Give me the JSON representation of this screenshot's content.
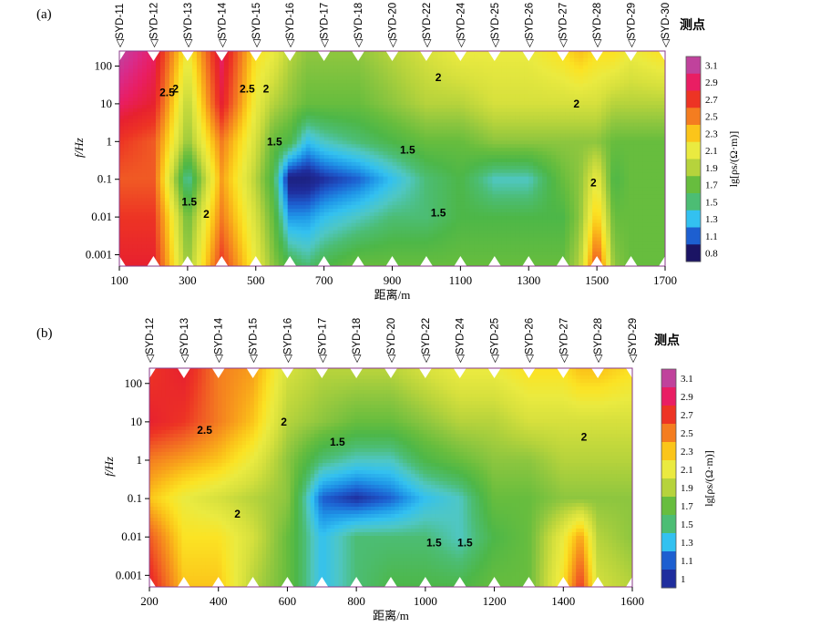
{
  "chart_data": [
    {
      "panel_label": "(a)",
      "type": "heatmap",
      "subtype": "resistivity-pseudosection",
      "xlabel": "距离/m",
      "ylabel": "f/Hz",
      "y_scale": "log",
      "xlim": [
        100,
        1700
      ],
      "ylim": [
        0.0005,
        250
      ],
      "x_ticks": [
        100,
        300,
        500,
        700,
        900,
        1100,
        1300,
        1500,
        1700
      ],
      "y_ticks": [
        100,
        10,
        1,
        0.1,
        0.01,
        0.001
      ],
      "y_tick_labels": [
        "100",
        "10",
        "1",
        "0.1",
        "0.01",
        "0.001"
      ],
      "stations_title": "测点",
      "stations": [
        {
          "name": "SYD-11",
          "x": 100
        },
        {
          "name": "SYD-12",
          "x": 200
        },
        {
          "name": "SYD-13",
          "x": 300
        },
        {
          "name": "SYD-14",
          "x": 400
        },
        {
          "name": "SYD-15",
          "x": 500
        },
        {
          "name": "SYD-16",
          "x": 600
        },
        {
          "name": "SYD-17",
          "x": 700
        },
        {
          "name": "SYD-18",
          "x": 800
        },
        {
          "name": "SYD-20",
          "x": 900
        },
        {
          "name": "SYD-22",
          "x": 1000
        },
        {
          "name": "SYD-24",
          "x": 1100
        },
        {
          "name": "SYD-25",
          "x": 1200
        },
        {
          "name": "SYD-26",
          "x": 1300
        },
        {
          "name": "SYD-27",
          "x": 1400
        },
        {
          "name": "SYD-28",
          "x": 1500
        },
        {
          "name": "SYD-29",
          "x": 1600
        },
        {
          "name": "SYD-30",
          "x": 1700
        }
      ],
      "colorbar_label": "lg[ρs/(Ω·m)]",
      "colorbar_ticks": [
        "3.1",
        "2.9",
        "2.7",
        "2.5",
        "2.3",
        "2.1",
        "1.9",
        "1.7",
        "1.5",
        "1.3",
        "1.1",
        "0.8"
      ],
      "contour_labels": [
        {
          "text": "2.5",
          "x": 240,
          "y": 20
        },
        {
          "text": "2",
          "x": 265,
          "y": 25
        },
        {
          "text": "2.5",
          "x": 475,
          "y": 25
        },
        {
          "text": "2",
          "x": 530,
          "y": 25
        },
        {
          "text": "1.5",
          "x": 555,
          "y": 1
        },
        {
          "text": "1.5",
          "x": 305,
          "y": 0.025
        },
        {
          "text": "2",
          "x": 355,
          "y": 0.012
        },
        {
          "text": "2",
          "x": 1035,
          "y": 50
        },
        {
          "text": "2",
          "x": 1440,
          "y": 10
        },
        {
          "text": "1.5",
          "x": 945,
          "y": 0.6
        },
        {
          "text": "1.5",
          "x": 1035,
          "y": 0.013
        },
        {
          "text": "2",
          "x": 1490,
          "y": 0.08
        }
      ],
      "grid_x": [
        100,
        200,
        300,
        400,
        500,
        550,
        600,
        650,
        700,
        800,
        900,
        1000,
        1100,
        1200,
        1300,
        1400,
        1450,
        1500,
        1550,
        1600,
        1700
      ],
      "grid_logf": [
        2.3,
        1,
        0,
        -1,
        -2,
        -3.3
      ],
      "values": [
        [
          3.1,
          2.9,
          2.1,
          2.9,
          2.2,
          2.1,
          1.9,
          1.8,
          1.8,
          1.8,
          1.9,
          2.0,
          2.1,
          2.1,
          2.1,
          2.2,
          2.3,
          2.2,
          2.2,
          2.1,
          2.2
        ],
        [
          2.9,
          2.8,
          1.9,
          2.8,
          2.1,
          1.9,
          1.8,
          1.7,
          1.7,
          1.7,
          1.8,
          1.9,
          1.9,
          2.0,
          2.0,
          2.0,
          2.0,
          2.0,
          1.9,
          1.9,
          1.9
        ],
        [
          2.7,
          2.6,
          1.8,
          2.5,
          2.0,
          1.7,
          1.6,
          1.3,
          1.4,
          1.5,
          1.6,
          1.7,
          1.7,
          1.8,
          1.8,
          1.8,
          1.8,
          1.8,
          1.7,
          1.7,
          1.7
        ],
        [
          2.6,
          2.6,
          1.4,
          2.4,
          1.9,
          1.6,
          0.9,
          0.9,
          1.0,
          1.1,
          1.3,
          1.5,
          1.6,
          1.4,
          1.4,
          1.7,
          1.8,
          2.1,
          1.6,
          1.7,
          1.7
        ],
        [
          2.7,
          2.7,
          1.7,
          2.5,
          2.0,
          1.7,
          1.2,
          1.2,
          1.3,
          1.4,
          1.5,
          1.5,
          1.6,
          1.6,
          1.6,
          1.6,
          1.8,
          2.3,
          1.7,
          1.7,
          1.7
        ],
        [
          2.8,
          2.8,
          1.8,
          2.7,
          2.1,
          1.8,
          1.6,
          1.5,
          1.6,
          1.7,
          1.7,
          1.7,
          1.7,
          1.7,
          1.7,
          1.7,
          1.9,
          2.7,
          1.8,
          1.7,
          1.7
        ]
      ]
    },
    {
      "panel_label": "(b)",
      "type": "heatmap",
      "subtype": "resistivity-pseudosection",
      "xlabel": "距离/m",
      "ylabel": "f/Hz",
      "y_scale": "log",
      "xlim": [
        200,
        1600
      ],
      "ylim": [
        0.0005,
        250
      ],
      "x_ticks": [
        200,
        400,
        600,
        800,
        1000,
        1200,
        1400,
        1600
      ],
      "y_ticks": [
        100,
        10,
        1,
        0.1,
        0.01,
        0.001
      ],
      "y_tick_labels": [
        "100",
        "10",
        "1",
        "0.1",
        "0.01",
        "0.001"
      ],
      "stations_title": "测点",
      "stations": [
        {
          "name": "SYD-12",
          "x": 200
        },
        {
          "name": "SYD-13",
          "x": 300
        },
        {
          "name": "SYD-14",
          "x": 400
        },
        {
          "name": "SYD-15",
          "x": 500
        },
        {
          "name": "SYD-16",
          "x": 600
        },
        {
          "name": "SYD-17",
          "x": 700
        },
        {
          "name": "SYD-18",
          "x": 800
        },
        {
          "name": "SYD-20",
          "x": 900
        },
        {
          "name": "SYD-22",
          "x": 1000
        },
        {
          "name": "SYD-24",
          "x": 1100
        },
        {
          "name": "SYD-25",
          "x": 1200
        },
        {
          "name": "SYD-26",
          "x": 1300
        },
        {
          "name": "SYD-27",
          "x": 1400
        },
        {
          "name": "SYD-28",
          "x": 1500
        },
        {
          "name": "SYD-29",
          "x": 1600
        }
      ],
      "colorbar_label": "lg[ρs/(Ω·m)]",
      "colorbar_ticks": [
        "3.1",
        "2.9",
        "2.7",
        "2.5",
        "2.3",
        "2.1",
        "1.9",
        "1.7",
        "1.5",
        "1.3",
        "1.1",
        "1"
      ],
      "contour_labels": [
        {
          "text": "2.5",
          "x": 360,
          "y": 6
        },
        {
          "text": "2",
          "x": 590,
          "y": 10
        },
        {
          "text": "1.5",
          "x": 745,
          "y": 3
        },
        {
          "text": "2",
          "x": 455,
          "y": 0.04
        },
        {
          "text": "2",
          "x": 1460,
          "y": 4
        },
        {
          "text": "1.5",
          "x": 1025,
          "y": 0.007
        },
        {
          "text": "1.5",
          "x": 1115,
          "y": 0.007
        }
      ],
      "grid_x": [
        200,
        300,
        400,
        500,
        600,
        700,
        800,
        900,
        1000,
        1100,
        1200,
        1300,
        1400,
        1450,
        1500,
        1600
      ],
      "grid_logf": [
        2.3,
        1,
        0,
        -1,
        -2,
        -3.3
      ],
      "values": [
        [
          2.7,
          2.8,
          2.5,
          2.4,
          2.0,
          1.9,
          1.9,
          1.9,
          2.0,
          2.1,
          2.1,
          2.2,
          2.2,
          2.3,
          2.3,
          2.2
        ],
        [
          2.8,
          2.7,
          2.5,
          2.3,
          1.9,
          1.8,
          1.7,
          1.7,
          1.8,
          1.9,
          1.9,
          2.0,
          2.0,
          2.0,
          2.0,
          2.0
        ],
        [
          2.5,
          2.4,
          2.3,
          2.1,
          1.8,
          1.5,
          1.4,
          1.4,
          1.6,
          1.7,
          1.8,
          1.8,
          1.9,
          1.9,
          1.9,
          1.9
        ],
        [
          2.3,
          2.1,
          2.0,
          1.9,
          1.8,
          1.1,
          1.0,
          1.1,
          1.3,
          1.4,
          1.7,
          1.7,
          1.8,
          1.8,
          1.8,
          1.8
        ],
        [
          2.6,
          2.2,
          2.2,
          2.0,
          1.7,
          1.3,
          1.5,
          1.5,
          1.5,
          1.4,
          1.6,
          1.7,
          2.1,
          2.4,
          1.9,
          1.8
        ],
        [
          2.8,
          2.3,
          2.3,
          1.9,
          1.7,
          1.3,
          1.5,
          1.6,
          1.6,
          1.6,
          1.7,
          1.7,
          2.2,
          2.7,
          2.0,
          1.9
        ]
      ]
    }
  ],
  "palette": {
    "stops": [
      {
        "v": 0.8,
        "c": "#1b1464"
      },
      {
        "v": 1.0,
        "c": "#1f2e9e"
      },
      {
        "v": 1.1,
        "c": "#1d5fd0"
      },
      {
        "v": 1.2,
        "c": "#1f97e8"
      },
      {
        "v": 1.3,
        "c": "#33c1f0"
      },
      {
        "v": 1.4,
        "c": "#4fc7c4"
      },
      {
        "v": 1.5,
        "c": "#4cbd74"
      },
      {
        "v": 1.6,
        "c": "#4db748"
      },
      {
        "v": 1.7,
        "c": "#67bd3e"
      },
      {
        "v": 1.8,
        "c": "#8dc63f"
      },
      {
        "v": 1.9,
        "c": "#b6d33c"
      },
      {
        "v": 2.0,
        "c": "#d6e03d"
      },
      {
        "v": 2.1,
        "c": "#eaea40"
      },
      {
        "v": 2.2,
        "c": "#fbe324"
      },
      {
        "v": 2.3,
        "c": "#fbc51a"
      },
      {
        "v": 2.4,
        "c": "#f8a01b"
      },
      {
        "v": 2.5,
        "c": "#f47d20"
      },
      {
        "v": 2.6,
        "c": "#f05a24"
      },
      {
        "v": 2.7,
        "c": "#ed3424"
      },
      {
        "v": 2.8,
        "c": "#e7212f"
      },
      {
        "v": 2.9,
        "c": "#e91e63"
      },
      {
        "v": 3.0,
        "c": "#d92b8a"
      },
      {
        "v": 3.1,
        "c": "#c0429c"
      }
    ]
  }
}
